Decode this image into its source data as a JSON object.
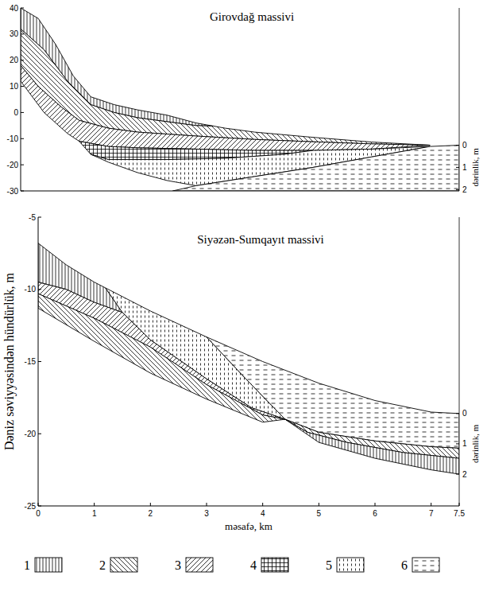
{
  "ylabel": "Dəniz səviyyəsindən hündürlük, m",
  "legend_labels": [
    "1",
    "2",
    "3",
    "4",
    "5",
    "6"
  ],
  "chart_data": [
    {
      "type": "area",
      "title": "Girovdağ massivi",
      "color": "#000000",
      "y2label": "dərinlik, m",
      "xlim": [
        0,
        7.5
      ],
      "ylim": [
        -30,
        40
      ],
      "yticks": [
        -30,
        -20,
        -10,
        0,
        10,
        20,
        30,
        40
      ],
      "y2lim": [
        2.06,
        -6.18
      ],
      "y2ticks": [
        0,
        1,
        2
      ],
      "series": [
        {
          "name": "1",
          "x": [
            0,
            0.3,
            0.6,
            0.9,
            1.2,
            1.6,
            2,
            2.5,
            3,
            3.3,
            3,
            2.5,
            2,
            1.6,
            1.2,
            0.8,
            0.4,
            0
          ],
          "values": [
            40,
            36,
            26,
            14,
            6,
            3,
            1,
            -1,
            -4,
            -5.2,
            -5,
            -3.5,
            -2,
            0,
            3,
            12,
            24,
            32
          ]
        },
        {
          "name": "2",
          "x": [
            0,
            0.4,
            0.8,
            1.2,
            1.6,
            2,
            2.5,
            3,
            3.3,
            3.5,
            4,
            5,
            6,
            7,
            6,
            5,
            4,
            3,
            2,
            1.5,
            1,
            0.7,
            0.3,
            0
          ],
          "values": [
            32,
            24,
            12,
            3,
            0,
            -2,
            -3.5,
            -5,
            -5.2,
            -6,
            -7.5,
            -9.5,
            -11.3,
            -12.5,
            -12,
            -11.2,
            -10.3,
            -9,
            -7.5,
            -6,
            -3,
            2,
            10,
            18
          ]
        },
        {
          "name": "3",
          "x": [
            0,
            0.3,
            0.7,
            1,
            1.5,
            2,
            3,
            4,
            5,
            6,
            7,
            6,
            5,
            4,
            3,
            2,
            1.5,
            1,
            0.8,
            0.4,
            0
          ],
          "values": [
            18,
            10,
            2,
            -3,
            -6,
            -7.5,
            -9,
            -10.3,
            -11.2,
            -12,
            -12.5,
            -14,
            -14.5,
            -14.5,
            -14,
            -13.5,
            -13,
            -11,
            -8,
            0,
            12
          ]
        },
        {
          "name": "4",
          "x": [
            1,
            1.5,
            2,
            3,
            4,
            5,
            4.5,
            3.5,
            2.5,
            1.5,
            1.2
          ],
          "values": [
            -11,
            -13,
            -13.5,
            -14,
            -14.5,
            -14.5,
            -16,
            -17.5,
            -18,
            -18,
            -16
          ]
        },
        {
          "name": "5",
          "x": [
            1.2,
            1.5,
            2.5,
            3.5,
            4.5,
            5,
            6,
            7,
            6,
            5,
            4,
            3,
            2.5,
            2,
            1.5
          ],
          "values": [
            -16,
            -18,
            -18,
            -17.5,
            -16,
            -14.5,
            -14,
            -13,
            -17,
            -21,
            -24.5,
            -28,
            -26,
            -23,
            -19
          ]
        },
        {
          "name": "6",
          "x": [
            2.6,
            3,
            4,
            5,
            6,
            7,
            7.5,
            7.5
          ],
          "values": [
            -30,
            -28,
            -24.5,
            -21,
            -17,
            -13,
            -12.5,
            -30
          ]
        }
      ]
    },
    {
      "type": "area",
      "title": "Siyəzən-Sumqayıt massivi",
      "color": "#000000",
      "xlabel": "məsafə, km",
      "y2label": "dərinlik, m",
      "xlim": [
        0,
        7.5
      ],
      "ylim": [
        -25,
        -5
      ],
      "xticks": [
        0,
        1,
        2,
        3,
        4,
        5,
        6,
        7,
        7.5
      ],
      "yticks": [
        -25,
        -20,
        -15,
        -10,
        -5
      ],
      "y2lim": [
        3.05,
        -6.48
      ],
      "y2ticks": [
        0,
        1,
        2
      ],
      "series": [
        {
          "name": "1",
          "x": [
            0,
            0.5,
            1,
            1.2,
            1.5,
            1,
            0.5,
            0
          ],
          "values": [
            -6.8,
            -8.3,
            -9.5,
            -9.9,
            -11.6,
            -10.9,
            -10.0,
            -9.5
          ]
        },
        {
          "name": "5",
          "x": [
            1.2,
            2,
            3,
            3.7,
            4.4,
            3.8,
            3,
            2,
            1.5
          ],
          "values": [
            -9.9,
            -11.5,
            -13.3,
            -16.2,
            -19,
            -18.2,
            -16.2,
            -13.5,
            -11.6
          ]
        },
        {
          "name": "3",
          "x": [
            0,
            0.5,
            1,
            1.5,
            2,
            3,
            3.8,
            4.4,
            4,
            3,
            2,
            1,
            0
          ],
          "values": [
            -9.5,
            -10.0,
            -10.9,
            -11.6,
            -13.5,
            -16.2,
            -18.2,
            -19,
            -18.7,
            -16.6,
            -14.0,
            -12.0,
            -10.3
          ]
        },
        {
          "name": "2",
          "x": [
            0,
            1,
            2,
            3,
            4,
            4.4,
            4,
            3,
            2,
            1,
            0
          ],
          "values": [
            -10.3,
            -12.0,
            -14.0,
            -16.6,
            -18.7,
            -19,
            -19.2,
            -17.6,
            -15.8,
            -13.6,
            -11.3
          ]
        },
        {
          "name": "6",
          "x": [
            3,
            4,
            5,
            6,
            7,
            7.5,
            7.5,
            7,
            6,
            5,
            4.4,
            3.7
          ],
          "values": [
            -13.3,
            -15,
            -16.5,
            -17.7,
            -18.5,
            -18.6,
            -21,
            -20.9,
            -20.5,
            -19.9,
            -19,
            -16.2
          ]
        },
        {
          "name": "2",
          "x": [
            4.4,
            5,
            6,
            7,
            7.5,
            7.5,
            6.5,
            5.5,
            4.8
          ],
          "values": [
            -19,
            -19.9,
            -20.5,
            -20.9,
            -21,
            -21.7,
            -21.3,
            -20.6,
            -19.9
          ]
        },
        {
          "name": "1",
          "x": [
            4.4,
            4.8,
            5.5,
            6.5,
            7.5,
            7.5,
            7,
            6,
            5
          ],
          "values": [
            -19,
            -19.9,
            -20.6,
            -21.3,
            -21.7,
            -22.8,
            -22.5,
            -21.7,
            -20.6
          ]
        }
      ]
    }
  ]
}
